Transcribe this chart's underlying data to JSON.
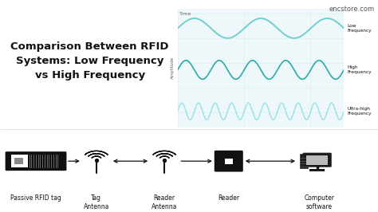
{
  "title": "Comparison Between RFID\nSystems: Low Frequency\nvs High Frequency",
  "watermark": "encstore.com",
  "wave_labels": [
    "Low\nFrequency",
    "High\nFrequency",
    "Ultra-high\nFrequency"
  ],
  "wave_freqs": [
    2.5,
    5.0,
    10.0
  ],
  "wave_color_low": "#5BC8C8",
  "wave_color_mid": "#2AABAA",
  "wave_color_high": "#7ADADA",
  "grid_color": "#D8EEF2",
  "chart_bg": "#EEF8FA",
  "axis_label_x": "Time",
  "axis_label_y": "Amplitude",
  "bottom_labels": [
    "Passive RFID tag",
    "Tag\nAntenna",
    "Reader\nAntenna",
    "Reader",
    "Computer\nsoftware"
  ],
  "bg_color": "#FFFFFF",
  "text_color": "#111111",
  "icon_color": "#111111",
  "divider_color": "#DDDDDD",
  "title_fontsize": 9.5,
  "label_fontsize": 5.5,
  "watermark_fontsize": 6.0,
  "wave_lw_low": 1.4,
  "wave_lw_mid": 1.2,
  "wave_lw_high": 1.0
}
